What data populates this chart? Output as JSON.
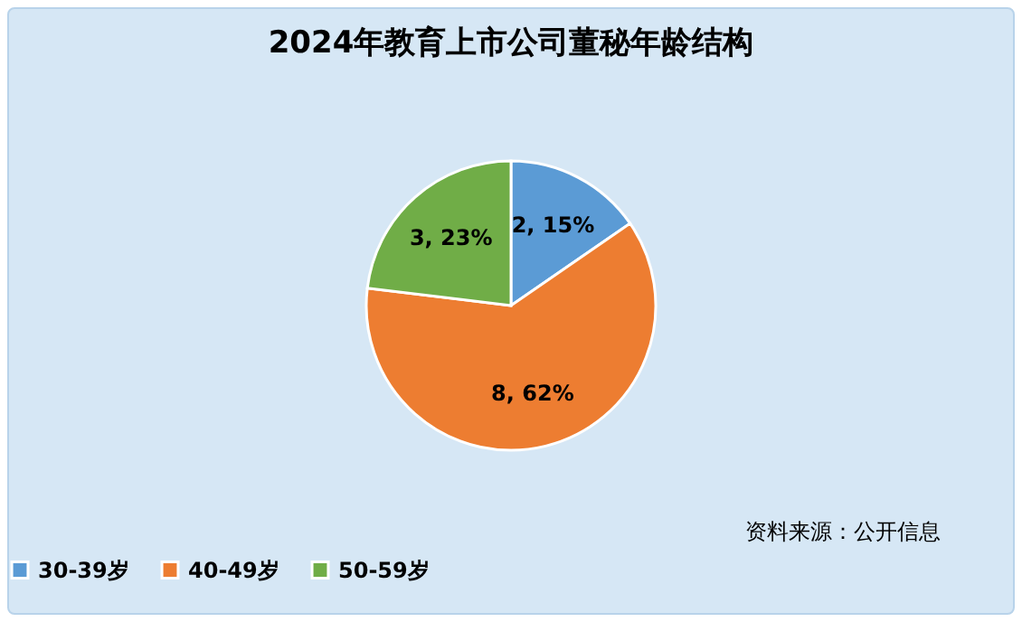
{
  "chart_data": {
    "type": "pie",
    "title": "2024年教育上市公司董秘年龄结构",
    "categories": [
      "30-39岁",
      "40-49岁",
      "50-59岁"
    ],
    "values": [
      2,
      8,
      3
    ],
    "colors": [
      "#5b9bd5",
      "#ed7d31",
      "#70ad47"
    ],
    "value_labels": [
      "2, 15%",
      "8, 62%",
      "3, 23%"
    ],
    "legend": "bottom",
    "annotations": [
      "资料来源：公开信息"
    ]
  }
}
